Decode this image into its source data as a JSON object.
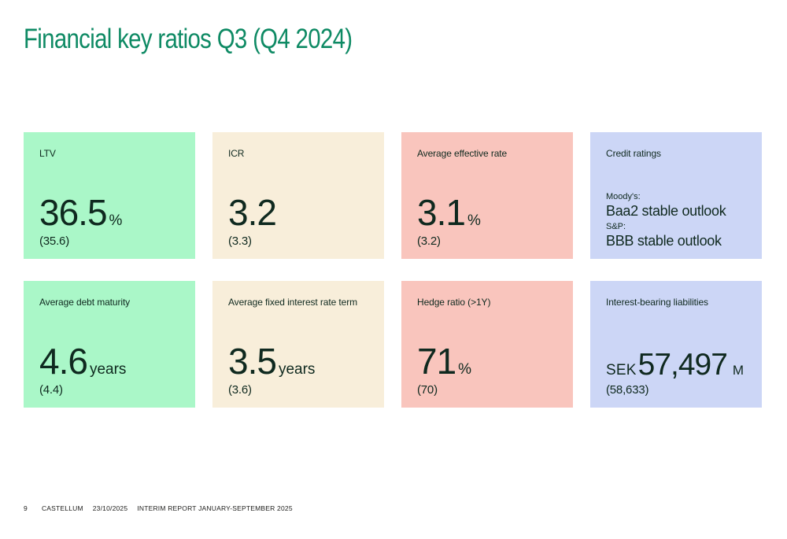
{
  "page": {
    "title": "Financial key ratios Q3 (Q4 2024)"
  },
  "colors": {
    "green": "#aaf7c8",
    "cream": "#f8eeda",
    "pink": "#f9c5bd",
    "blue": "#ccd6f6",
    "title_green": "#0e8a64",
    "text_dark": "#0f291f"
  },
  "cards": [
    {
      "label": "LTV",
      "value": "36.5",
      "unit": "%",
      "previous": "(35.6)"
    },
    {
      "label": "ICR",
      "value": "3.2",
      "unit": "",
      "previous": "(3.3)"
    },
    {
      "label": "Average effective rate",
      "value": "3.1",
      "unit": "%",
      "previous": "(3.2)"
    },
    {
      "label": "Credit ratings",
      "ratings": [
        {
          "agency": "Moody's:",
          "rating": "Baa2 stable outlook"
        },
        {
          "agency": "S&P:",
          "rating": "BBB stable outlook"
        }
      ]
    },
    {
      "label": "Average debt maturity",
      "value": "4.6",
      "unit": "years",
      "previous": "(4.4)"
    },
    {
      "label": "Average fixed interest rate term",
      "value": "3.5",
      "unit": "years",
      "previous": "(3.6)"
    },
    {
      "label": "Hedge ratio (>1Y)",
      "value": "71",
      "unit": "%",
      "previous": "(70)"
    },
    {
      "label": "Interest-bearing liabilities",
      "prefix": "SEK",
      "value": "57,497",
      "unit": "M",
      "previous": "(58,633)"
    }
  ],
  "footer": {
    "page_number": "9",
    "company": "CASTELLUM",
    "date": "23/10/2025",
    "report": "INTERIM REPORT JANUARY-SEPTEMBER 2025"
  }
}
